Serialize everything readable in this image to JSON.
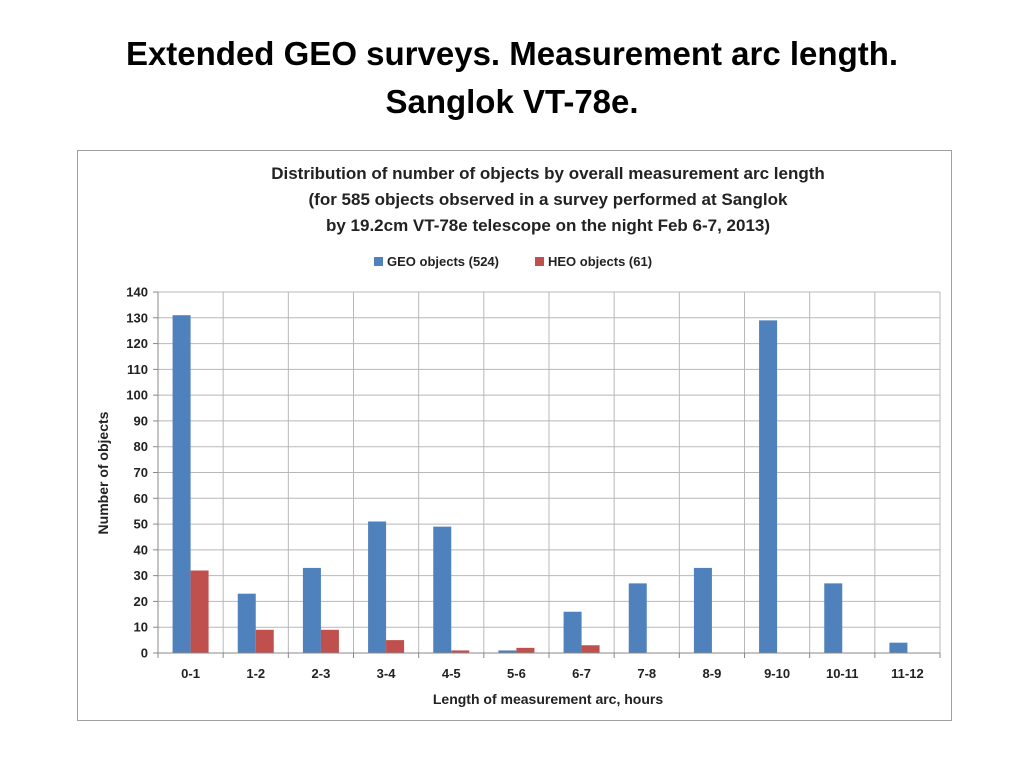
{
  "slide": {
    "title_line1": "Extended GEO surveys. Measurement arc length.",
    "title_line2": "Sanglok VT-78e."
  },
  "chart_data": {
    "type": "bar",
    "title_lines": [
      "Distribution of number of objects by overall measurement arc length",
      "(for 585 objects observed in a survey performed at Sanglok",
      "by 19.2cm VT-78e telescope on the night Feb 6-7, 2013)"
    ],
    "xlabel": "Length of measurement arc, hours",
    "ylabel": "Number of objects",
    "ylim": [
      0,
      140
    ],
    "ytick_step": 10,
    "grid": true,
    "legend_position": "top-center",
    "categories": [
      "0-1",
      "1-2",
      "2-3",
      "3-4",
      "4-5",
      "5-6",
      "6-7",
      "7-8",
      "8-9",
      "9-10",
      "10-11",
      "11-12"
    ],
    "series": [
      {
        "name": "GEO objects (524)",
        "color": "#4f81bd",
        "values": [
          131,
          23,
          33,
          51,
          49,
          1,
          16,
          27,
          33,
          129,
          27,
          4
        ]
      },
      {
        "name": "HEO objects (61)",
        "color": "#c0504d",
        "values": [
          32,
          9,
          9,
          5,
          1,
          2,
          3,
          0,
          0,
          0,
          0,
          0
        ]
      }
    ]
  }
}
